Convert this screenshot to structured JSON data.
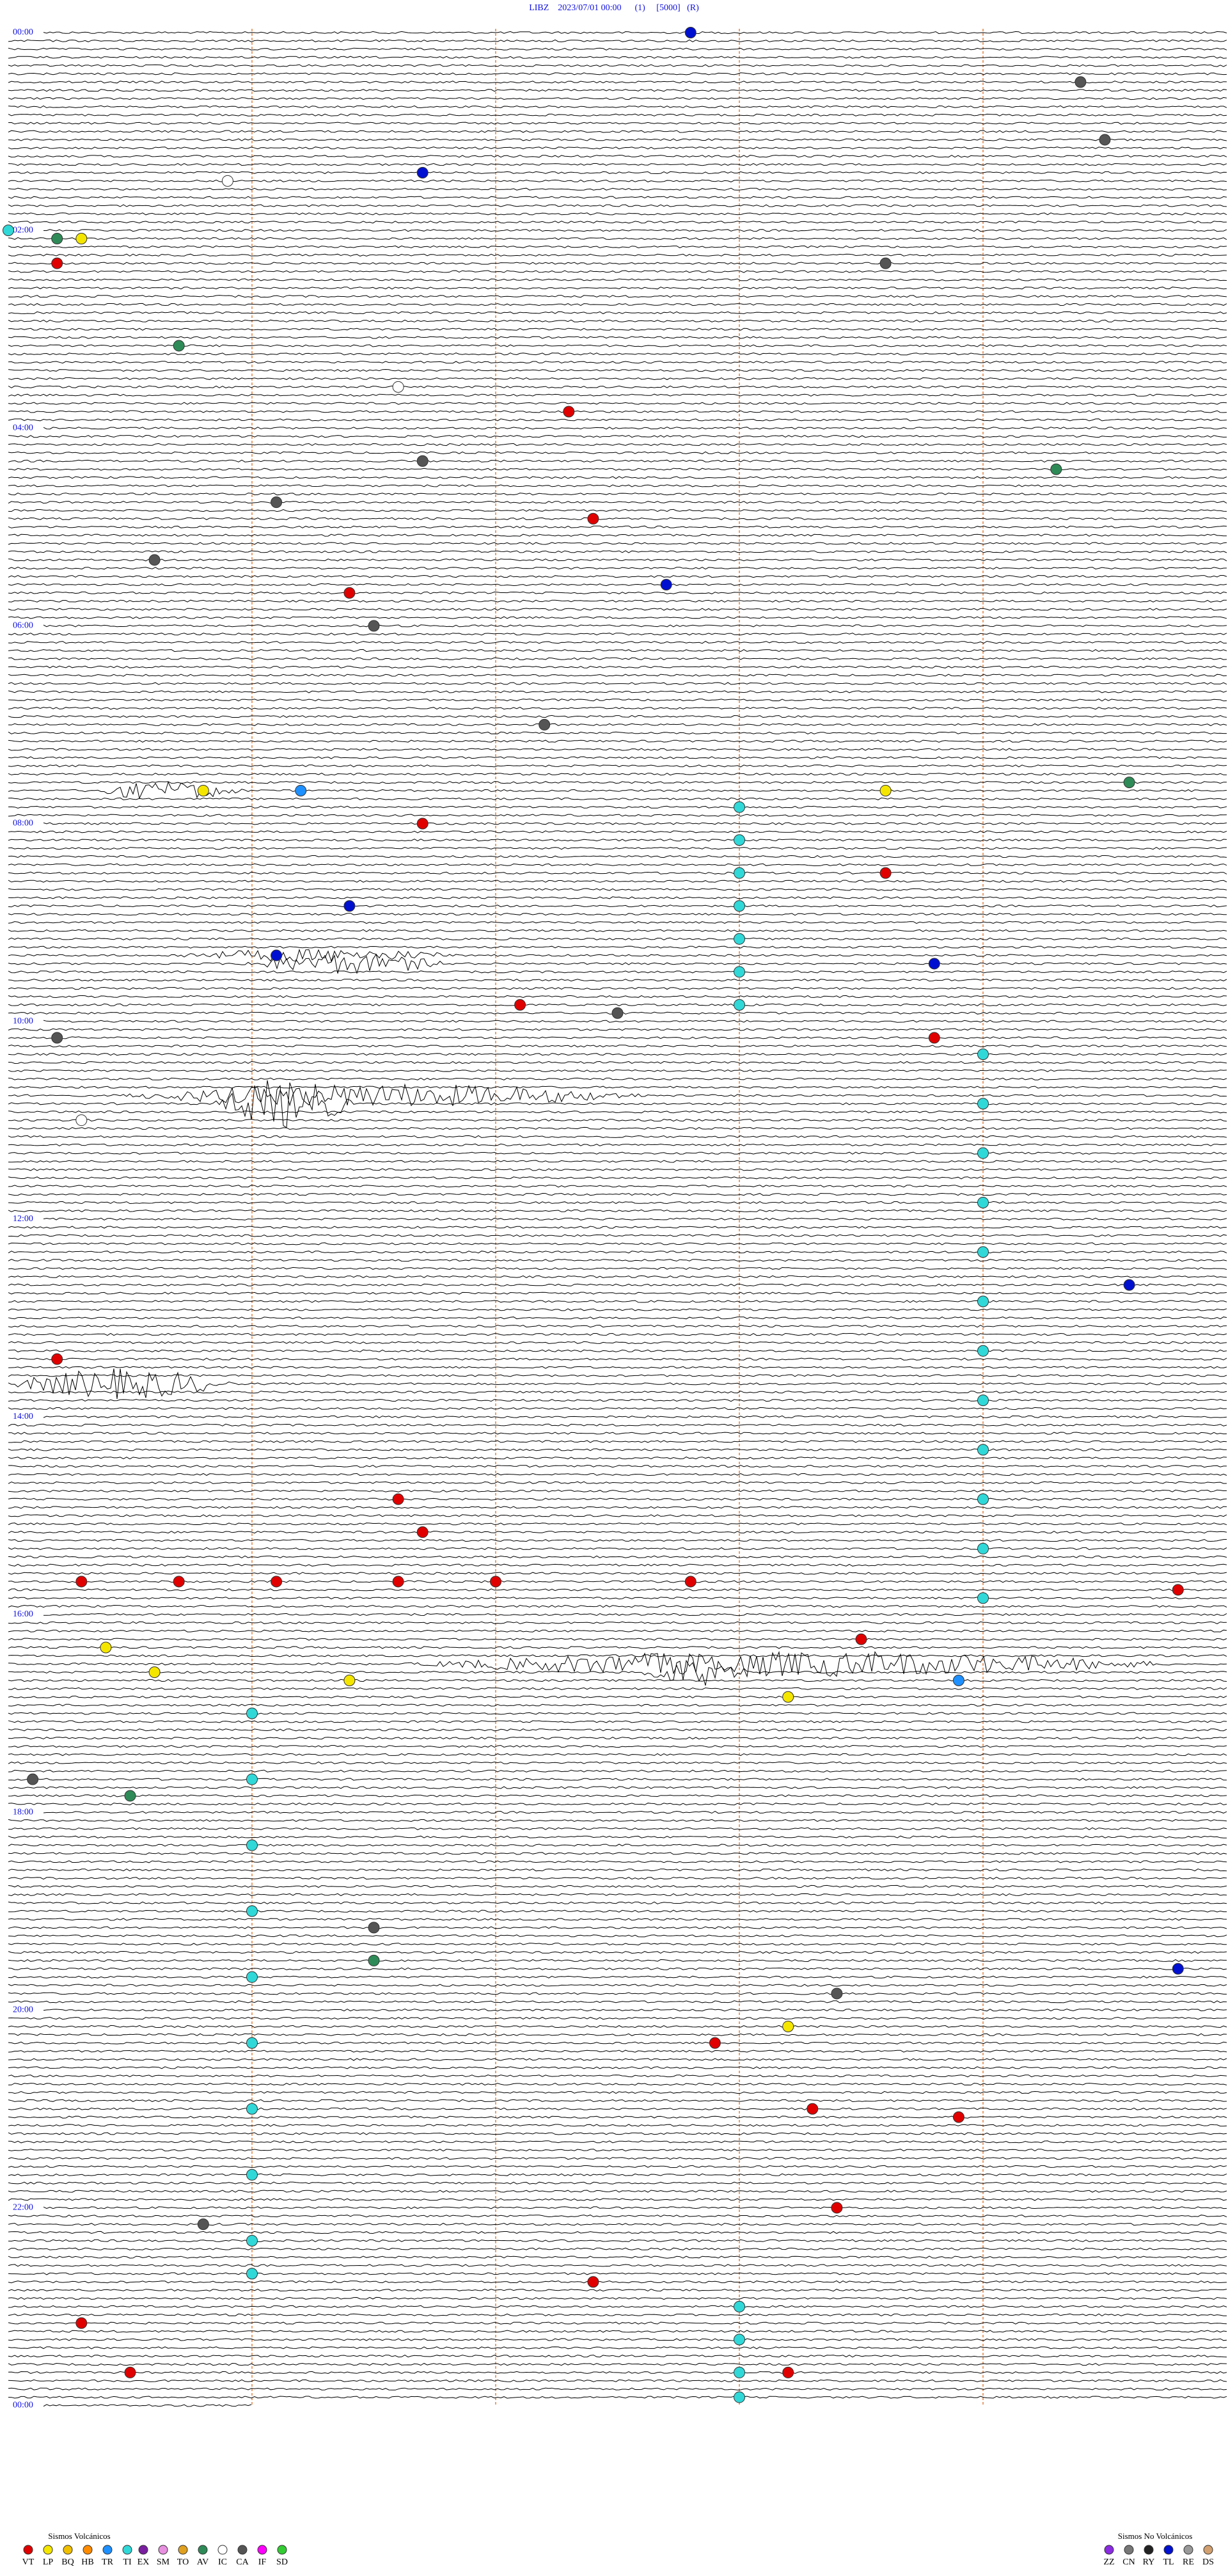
{
  "header": {
    "title": "LIBZ    2023/07/01 00:00      (1)     [5000]   (R)"
  },
  "time_labels": [
    "00:00",
    "02:00",
    "04:00",
    "06:00",
    "08:00",
    "10:00",
    "12:00",
    "14:00",
    "16:00",
    "18:00",
    "20:00",
    "22:00",
    "00:00"
  ],
  "legend": {
    "volcanic": {
      "title": "Sismos Volcánicos",
      "classes": [
        {
          "code": "VT",
          "color": "#e00000"
        },
        {
          "code": "LP",
          "color": "#f5e600"
        },
        {
          "code": "BQ",
          "color": "#f0c000"
        },
        {
          "code": "HB",
          "color": "#ff8c00"
        },
        {
          "code": "TR",
          "color": "#1e90ff"
        },
        {
          "code": "TI",
          "color": "#30d8d8"
        },
        {
          "code": "EX",
          "color": "#7a1fa0"
        },
        {
          "code": "SM",
          "color": "#e890e0"
        },
        {
          "code": "TO",
          "color": "#e0a020"
        },
        {
          "code": "AV",
          "color": "#2e8b57"
        },
        {
          "code": "IC",
          "color": "#ffffff"
        },
        {
          "code": "CA",
          "color": "#555555"
        },
        {
          "code": "IF",
          "color": "#ff00ff"
        },
        {
          "code": "SD",
          "color": "#33cc33"
        }
      ]
    },
    "non_volcanic": {
      "title": "Sismos No Volcánicos",
      "classes": [
        {
          "code": "ZZ",
          "color": "#8a2be2"
        },
        {
          "code": "CN",
          "color": "#777777"
        },
        {
          "code": "RY",
          "color": "#222222"
        },
        {
          "code": "TL",
          "color": "#0010d0"
        },
        {
          "code": "RE",
          "color": "#999999"
        },
        {
          "code": "DS",
          "color": "#d2a070"
        }
      ]
    }
  },
  "events": [
    {
      "code": "TL",
      "t": 2.8
    },
    {
      "code": "CA",
      "t": 34.4
    },
    {
      "code": "CA",
      "t": 69.5
    },
    {
      "code": "TL",
      "t": 86.7
    },
    {
      "code": "IC",
      "t": 90.9
    },
    {
      "code": "TI",
      "t": 120
    },
    {
      "code": "AV",
      "t": 125.2
    },
    {
      "code": "LP",
      "t": 125.3
    },
    {
      "code": "VT",
      "t": 140.2
    },
    {
      "code": "CA",
      "t": 143.6
    },
    {
      "code": "AV",
      "t": 190.7
    },
    {
      "code": "IC",
      "t": 216.6
    },
    {
      "code": "VT",
      "t": 232.3
    },
    {
      "code": "CA",
      "t": 261.7
    },
    {
      "code": "AV",
      "t": 269.3
    },
    {
      "code": "CA",
      "t": 286.1
    },
    {
      "code": "VT",
      "t": 297.4
    },
    {
      "code": "CA",
      "t": 320.6
    },
    {
      "code": "TL",
      "t": 337.7
    },
    {
      "code": "VT",
      "t": 341.4
    },
    {
      "code": "CA",
      "t": 361.5
    },
    {
      "code": "CA",
      "t": 422.2
    },
    {
      "code": "LP",
      "t": 460.8
    },
    {
      "code": "TR",
      "t": 461.2
    },
    {
      "code": "LP",
      "t": 463.6
    },
    {
      "code": "AV",
      "t": 459.6
    },
    {
      "code": "VT",
      "t": 481.7
    },
    {
      "code": "TI",
      "t": 473
    },
    {
      "code": "TI",
      "t": 493
    },
    {
      "code": "TI",
      "t": 513
    },
    {
      "code": "TI",
      "t": 533
    },
    {
      "code": "TI",
      "t": 553
    },
    {
      "code": "TI",
      "t": 573
    },
    {
      "code": "TI",
      "t": 593
    },
    {
      "code": "VT",
      "t": 513.6
    },
    {
      "code": "TL",
      "t": 531.4
    },
    {
      "code": "TL",
      "t": 561.1
    },
    {
      "code": "TL",
      "t": 568.8
    },
    {
      "code": "VT",
      "t": 592.1
    },
    {
      "code": "CA",
      "t": 597.5
    },
    {
      "code": "VT",
      "t": 613.8
    },
    {
      "code": "CA",
      "t": 610.2
    },
    {
      "code": "TI",
      "t": 624
    },
    {
      "code": "TI",
      "t": 654
    },
    {
      "code": "TI",
      "t": 684
    },
    {
      "code": "TI",
      "t": 714
    },
    {
      "code": "TI",
      "t": 744
    },
    {
      "code": "TI",
      "t": 774
    },
    {
      "code": "TI",
      "t": 804
    },
    {
      "code": "TI",
      "t": 834
    },
    {
      "code": "TI",
      "t": 864
    },
    {
      "code": "TI",
      "t": 894
    },
    {
      "code": "TI",
      "t": 924
    },
    {
      "code": "TI",
      "t": 954
    },
    {
      "code": "IC",
      "t": 660.3
    },
    {
      "code": "TL",
      "t": 764.6
    },
    {
      "code": "VT",
      "t": 805.2
    },
    {
      "code": "VT",
      "t": 891.6
    },
    {
      "code": "VT",
      "t": 911.7
    },
    {
      "code": "VT",
      "t": 940.3
    },
    {
      "code": "VT",
      "t": 940.7
    },
    {
      "code": "VT",
      "t": 941.1
    },
    {
      "code": "VT",
      "t": 941.6
    },
    {
      "code": "VT",
      "t": 942
    },
    {
      "code": "VT",
      "t": 942.8
    },
    {
      "code": "VT",
      "t": 949.8
    },
    {
      "code": "VT",
      "t": 978.5
    },
    {
      "code": "LP",
      "t": 980.4
    },
    {
      "code": "LP",
      "t": 995.6
    },
    {
      "code": "LP",
      "t": 1001.4
    },
    {
      "code": "LP",
      "t": 1013.2
    },
    {
      "code": "TR",
      "t": 1003.9
    },
    {
      "code": "TI",
      "t": 1021
    },
    {
      "code": "TI",
      "t": 1061
    },
    {
      "code": "TI",
      "t": 1101
    },
    {
      "code": "TI",
      "t": 1141
    },
    {
      "code": "TI",
      "t": 1181
    },
    {
      "code": "TI",
      "t": 1221
    },
    {
      "code": "TI",
      "t": 1261
    },
    {
      "code": "TI",
      "t": 1301
    },
    {
      "code": "TI",
      "t": 1341
    },
    {
      "code": "TI",
      "t": 1361
    },
    {
      "code": "CA",
      "t": 1060.1
    },
    {
      "code": "AV",
      "t": 1070.5
    },
    {
      "code": "CA",
      "t": 1151.5
    },
    {
      "code": "AV",
      "t": 1171.5
    },
    {
      "code": "TL",
      "t": 1179.8
    },
    {
      "code": "CA",
      "t": 1193.4
    },
    {
      "code": "VT",
      "t": 1222.9
    },
    {
      "code": "LP",
      "t": 1213.2
    },
    {
      "code": "VT",
      "t": 1263.3
    },
    {
      "code": "VT",
      "t": 1268.9
    },
    {
      "code": "VT",
      "t": 1323.4
    },
    {
      "code": "CA",
      "t": 1330.8
    },
    {
      "code": "VT",
      "t": 1367.4
    },
    {
      "code": "TI",
      "t": 1383
    },
    {
      "code": "TI",
      "t": 1403
    },
    {
      "code": "TI",
      "t": 1423
    },
    {
      "code": "TI",
      "t": 1438
    },
    {
      "code": "VT",
      "t": 1390.3
    },
    {
      "code": "VT",
      "t": 1420.5
    },
    {
      "code": "VT",
      "t": 1423.2
    }
  ]
}
